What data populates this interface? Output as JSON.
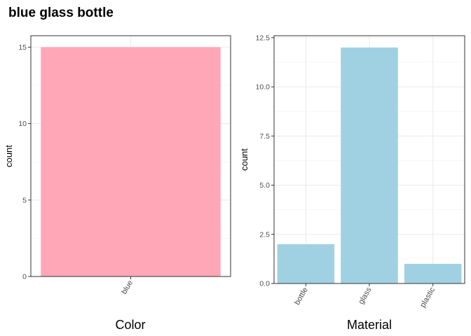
{
  "title": "blue glass bottle",
  "chart_data": [
    {
      "type": "bar",
      "xlabel": "Color",
      "ylabel": "count",
      "categories": [
        "blue"
      ],
      "values": [
        15
      ],
      "ylim": [
        0,
        15.75
      ],
      "yticks": [
        0,
        5,
        10,
        15
      ],
      "ytick_labels": [
        "0",
        "5",
        "10",
        "15"
      ],
      "bar_color": "#FFA7B6",
      "grid": true
    },
    {
      "type": "bar",
      "xlabel": "Material",
      "ylabel": "count",
      "categories": [
        "bottle",
        "glass",
        "plastic"
      ],
      "values": [
        2,
        12,
        1
      ],
      "ylim": [
        0,
        12.6
      ],
      "yticks": [
        0,
        2.5,
        5,
        7.5,
        10,
        12.5
      ],
      "ytick_labels": [
        "0.0",
        "2.5",
        "5.0",
        "7.5",
        "10.0",
        "12.5"
      ],
      "bar_color": "#9FD1E2",
      "grid": true
    }
  ]
}
